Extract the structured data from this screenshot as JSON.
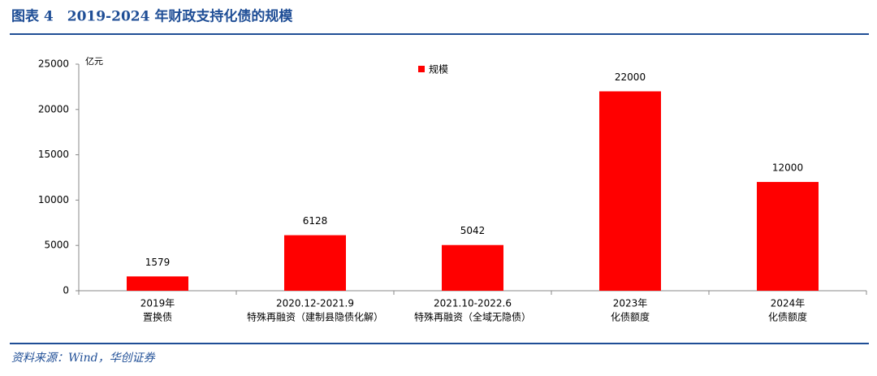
{
  "header": {
    "title": "图表 4　2019-2024 年财政支持化债的规模"
  },
  "chart_data": {
    "type": "bar",
    "unit_label": "亿元",
    "categories": [
      [
        "2019年",
        "置换债"
      ],
      [
        "2020.12-2021.9",
        "特殊再融资（建制县隐债化解）"
      ],
      [
        "2021.10-2022.6",
        "特殊再融资（全域无隐债）"
      ],
      [
        "2023年",
        "化债额度"
      ],
      [
        "2024年",
        "化债额度"
      ]
    ],
    "series": [
      {
        "name": "规模",
        "color": "#ff0000",
        "values": [
          1579,
          6128,
          5042,
          22000,
          12000
        ]
      }
    ],
    "ylim": [
      0,
      25000
    ],
    "yticks": [
      0,
      5000,
      10000,
      15000,
      20000,
      25000
    ],
    "legend": "top-center",
    "grid": false
  },
  "footer": {
    "source": "资料来源：Wind，华创证券"
  }
}
